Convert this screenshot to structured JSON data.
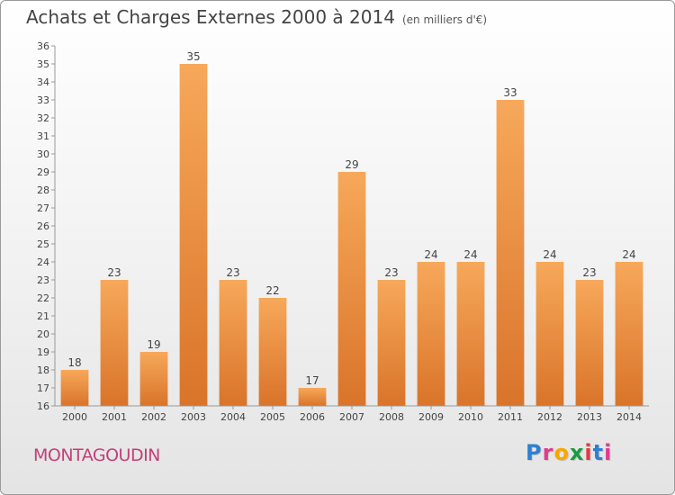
{
  "page": {
    "title": "Achats et Charges Externes 2000 à 2014",
    "subtitle": "(en milliers d'€)",
    "commune": "MONTAGOUDIN",
    "logo": {
      "text": "Proxiti",
      "letters": [
        {
          "ch": "P",
          "color": "#2f7fd1"
        },
        {
          "ch": "r",
          "color": "#e03c8c"
        },
        {
          "ch": "o",
          "color": "#f7a800"
        },
        {
          "ch": "x",
          "color": "#1a9c3e"
        },
        {
          "ch": "i",
          "color": "#e03c3c"
        },
        {
          "ch": "t",
          "color": "#2f7fd1"
        },
        {
          "ch": "i",
          "color": "#e03c8c"
        }
      ]
    }
  },
  "chart_data": {
    "type": "bar",
    "categories": [
      "2000",
      "2001",
      "2002",
      "2003",
      "2004",
      "2005",
      "2006",
      "2007",
      "2008",
      "2009",
      "2010",
      "2011",
      "2012",
      "2013",
      "2014"
    ],
    "values": [
      18,
      23,
      19,
      35,
      23,
      22,
      17,
      29,
      23,
      24,
      24,
      33,
      24,
      23,
      24
    ],
    "title": "Achats et Charges Externes 2000 à 2014",
    "subtitle": "(en milliers d'€)",
    "ylim": [
      16,
      36
    ],
    "yticks": [
      16,
      17,
      18,
      19,
      20,
      21,
      22,
      23,
      24,
      25,
      26,
      27,
      28,
      29,
      30,
      31,
      32,
      33,
      34,
      35,
      36
    ],
    "grid": false,
    "bar_color_light": "#f7a85a",
    "bar_color_dark": "#d9742a",
    "axis_color": "#999999"
  }
}
